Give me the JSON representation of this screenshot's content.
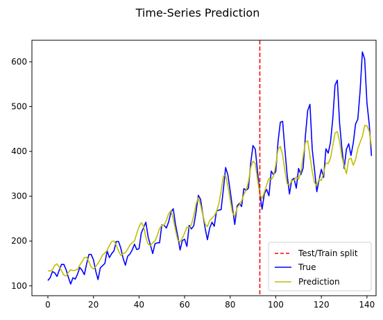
{
  "chart_data": {
    "type": "line",
    "title": "Time-Series Prediction",
    "xlabel": "",
    "ylabel": "",
    "xlim": [
      -7,
      144
    ],
    "ylim": [
      78,
      648
    ],
    "xticks": [
      0,
      20,
      40,
      60,
      80,
      100,
      120,
      140
    ],
    "yticks": [
      100,
      200,
      300,
      400,
      500,
      600
    ],
    "grid": false,
    "legend_position": "lower-right",
    "split": {
      "name": "Test/Train split",
      "x": 93,
      "color": "#ff0000",
      "style": "dashed"
    },
    "series": [
      {
        "name": "True",
        "color": "#0000ff",
        "x_start": 0,
        "values": [
          112,
          118,
          132,
          129,
          121,
          135,
          148,
          148,
          136,
          119,
          104,
          118,
          115,
          126,
          141,
          135,
          125,
          149,
          170,
          170,
          158,
          133,
          114,
          140,
          145,
          150,
          178,
          163,
          172,
          178,
          199,
          199,
          184,
          162,
          146,
          166,
          171,
          180,
          193,
          181,
          183,
          218,
          230,
          242,
          209,
          191,
          172,
          194,
          196,
          196,
          236,
          235,
          229,
          243,
          264,
          272,
          237,
          211,
          180,
          201,
          204,
          188,
          235,
          227,
          234,
          264,
          302,
          293,
          259,
          229,
          203,
          229,
          242,
          233,
          267,
          269,
          270,
          315,
          364,
          347,
          312,
          274,
          237,
          278,
          284,
          277,
          317,
          313,
          318,
          374,
          413,
          405,
          355,
          306,
          271,
          306,
          315,
          301,
          356,
          348,
          355,
          422,
          465,
          467,
          404,
          347,
          305,
          336,
          340,
          318,
          362,
          348,
          363,
          435,
          491,
          505,
          404,
          359,
          310,
          337,
          360,
          342,
          406,
          396,
          420,
          472,
          548,
          559,
          463,
          407,
          362,
          405,
          417,
          391,
          419,
          461,
          472,
          535,
          622,
          606,
          508,
          461,
          390
        ]
      },
      {
        "name": "Prediction",
        "color": "#bfbf00",
        "x_start": 0,
        "values": [
          134,
          133,
          136,
          146,
          149,
          142,
          134,
          124,
          122,
          130,
          136,
          134,
          135,
          137,
          146,
          154,
          163,
          164,
          154,
          142,
          138,
          143,
          150,
          159,
          169,
          173,
          179,
          190,
          199,
          200,
          191,
          178,
          168,
          172,
          174,
          182,
          191,
          196,
          200,
          217,
          232,
          241,
          233,
          208,
          193,
          190,
          196,
          200,
          212,
          228,
          235,
          236,
          246,
          261,
          268,
          250,
          225,
          202,
          198,
          206,
          218,
          231,
          229,
          237,
          256,
          282,
          297,
          281,
          258,
          238,
          232,
          246,
          251,
          256,
          266,
          283,
          311,
          345,
          346,
          323,
          292,
          263,
          255,
          274,
          281,
          289,
          304,
          314,
          332,
          365,
          378,
          373,
          337,
          304,
          295,
          309,
          325,
          340,
          337,
          345,
          370,
          405,
          411,
          392,
          356,
          328,
          325,
          335,
          335,
          343,
          338,
          354,
          389,
          420,
          424,
          390,
          355,
          330,
          323,
          339,
          335,
          352,
          374,
          373,
          385,
          412,
          441,
          444,
          422,
          388,
          368,
          350,
          382,
          385,
          369,
          382,
          406,
          420,
          434,
          458,
          457,
          445,
          411
        ]
      }
    ]
  }
}
